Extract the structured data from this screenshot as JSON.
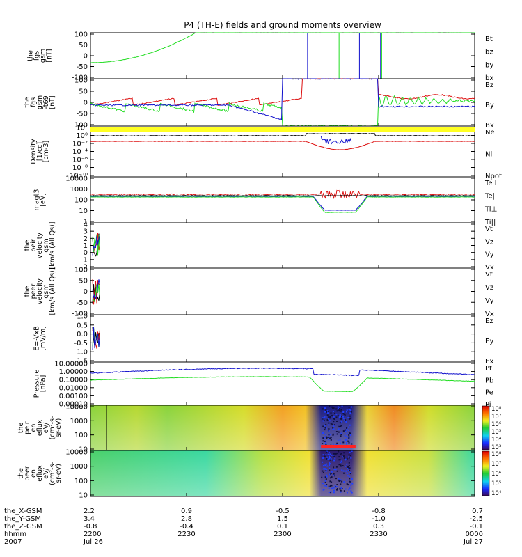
{
  "title": "P4 (TH-E) fields and ground moments overview",
  "colors": {
    "black": "#000000",
    "red": "#dd1111",
    "green": "#22dd22",
    "blue": "#1111cc",
    "yellow": "#ffff22"
  },
  "chart_data": {
    "type": "line",
    "x_time_labels": [
      "2200",
      "2230",
      "2300",
      "2330",
      "0000"
    ],
    "date_labels": [
      "Jul 26",
      "",
      "",
      "",
      "Jul 27"
    ],
    "year": "2007",
    "ephemeris": {
      "row_labels": [
        "the_X-GSM",
        "the_Y-GSM",
        "the_Z-GSM",
        "hhmm",
        "2007"
      ],
      "columns": [
        [
          "2.2",
          "3.4",
          "-0.8"
        ],
        [
          "0.9",
          "2.8",
          "-0.4"
        ],
        [
          "-0.5",
          "1.5",
          "0.1"
        ],
        [
          "-0.8",
          "-1.0",
          "0.3"
        ],
        [
          "0.7",
          "-2.5",
          "-0.1"
        ]
      ]
    },
    "panels": [
      {
        "ylabel": [
          "the",
          "fgs",
          "gsm",
          "[nT]"
        ],
        "ticks": [
          "100",
          "50",
          "0",
          "-50",
          "-100"
        ],
        "legend": [
          {
            "text": "Bt",
            "color": "black"
          },
          {
            "text": "bz",
            "color": "red"
          },
          {
            "text": "by",
            "color": "green"
          },
          {
            "text": "bx",
            "color": "blue"
          }
        ]
      },
      {
        "ylabel": [
          "the",
          "fgs",
          "gsm",
          "-t69",
          "[nT]"
        ],
        "ticks": [
          "100",
          "50",
          "0",
          "-50",
          "-100"
        ],
        "legend": [
          {
            "text": "Bz",
            "color": "red"
          },
          {
            "text": "By",
            "color": "green"
          },
          {
            "text": "Bx",
            "color": "blue"
          }
        ]
      },
      {
        "ylabel": [
          "Density",
          "[1/cc]",
          "[cm-3]"
        ],
        "ticks": [
          "10²",
          "10⁰",
          "10⁻²",
          "10⁻⁴",
          "10⁻⁶",
          "10⁻⁸",
          "10⁻¹⁰"
        ],
        "legend": [
          {
            "text": "Ne",
            "color": "red"
          },
          {
            "text": "Ni",
            "color": "black"
          },
          {
            "text": "Npot",
            "color": "blue"
          }
        ]
      },
      {
        "ylabel": [
          "magt3",
          "[eV]"
        ],
        "ticks": [
          "10000",
          "1000",
          "100",
          "10",
          "1"
        ],
        "legend": [
          {
            "text": "Te⊥",
            "color": "red"
          },
          {
            "text": "Te||",
            "color": "black"
          },
          {
            "text": "Ti⊥",
            "color": "blue"
          },
          {
            "text": "Ti||",
            "color": "green"
          }
        ]
      },
      {
        "ylabel": [
          "the",
          "peir",
          "velocity",
          "gsm",
          "[km/s (All Qs)]"
        ],
        "ticks": [
          "4",
          "3",
          "2",
          "1",
          "0",
          "-1",
          "-2"
        ],
        "legend": [
          {
            "text": "Vt",
            "color": "black"
          },
          {
            "text": "Vz",
            "color": "red"
          },
          {
            "text": "Vy",
            "color": "green"
          },
          {
            "text": "Vx",
            "color": "blue"
          }
        ]
      },
      {
        "ylabel": [
          "the",
          "peer",
          "velocity",
          "gsm",
          "[km/s (All Qs)]"
        ],
        "ticks": [
          "100",
          "50",
          "0",
          "-50",
          "-100"
        ],
        "legend": [
          {
            "text": "Vt",
            "color": "black"
          },
          {
            "text": "Vz",
            "color": "red"
          },
          {
            "text": "Vy",
            "color": "green"
          },
          {
            "text": "Vx",
            "color": "blue"
          }
        ]
      },
      {
        "ylabel": [
          "E=-VxB",
          "[mV/m]"
        ],
        "ticks": [
          "1.0",
          "0.5",
          "0.0",
          "-0.5",
          "-1.0",
          "-1.5"
        ],
        "legend": [
          {
            "text": "Ez",
            "color": "red"
          },
          {
            "text": "Ey",
            "color": "green"
          },
          {
            "text": "Ex",
            "color": "blue"
          }
        ]
      },
      {
        "ylabel": [
          "Pressure",
          "[nPa]"
        ],
        "ticks": [
          "10.00000",
          "1.00000",
          "0.10000",
          "0.01000",
          "0.00100",
          "0.00010"
        ],
        "legend": [
          {
            "text": "Pt",
            "color": "black"
          },
          {
            "text": "Pb",
            "color": "red"
          },
          {
            "text": "Pe",
            "color": "green"
          },
          {
            "text": "Pi",
            "color": "blue"
          }
        ]
      },
      {
        "ylabel": [
          "the",
          "peir",
          "en",
          "eflux",
          "eV/",
          "(cm²-s-",
          "sr-eV)"
        ],
        "ticks": [
          "10000",
          "1000",
          "100",
          "10"
        ],
        "colorbar": [
          "10⁸",
          "10⁷",
          "10⁶",
          "10⁵",
          "10⁴",
          "10³"
        ]
      },
      {
        "ylabel": [
          "the",
          "peer",
          "en",
          "eflux",
          "eV/",
          "(cm²-s-",
          "sr-eV)"
        ],
        "ticks": [
          "10000",
          "1000",
          "100",
          "10"
        ],
        "colorbar": [
          "10⁸",
          "10⁷",
          "10⁶",
          "10⁵",
          "10⁴"
        ]
      }
    ]
  }
}
